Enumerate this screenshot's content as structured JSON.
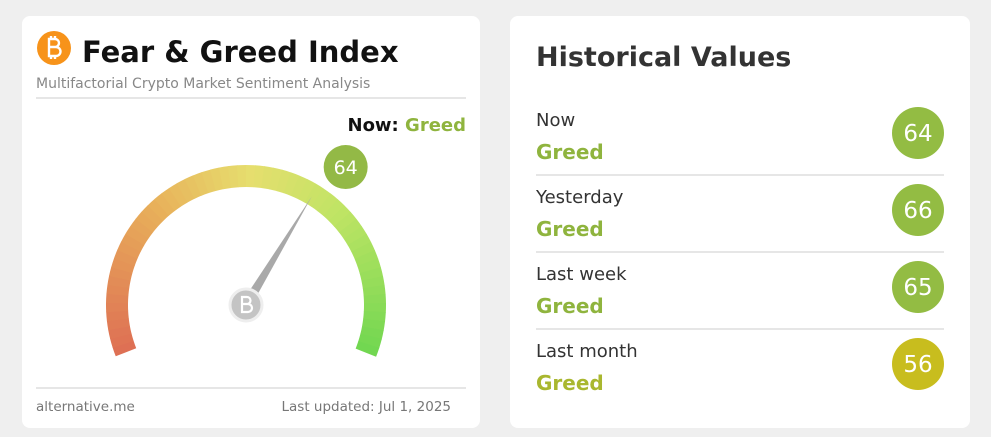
{
  "widget": {
    "title": "Fear & Greed Index",
    "subtitle": "Multifactorial Crypto Market Sentiment Analysis",
    "now_label": "Now:",
    "now_status": "Greed",
    "status_color": "#8fb43e",
    "gauge": {
      "value": 64,
      "range": [
        0,
        100
      ],
      "color": "#93b946"
    },
    "source": "alternative.me",
    "updated": "Last updated: Jul 1, 2025"
  },
  "history": {
    "title": "Historical Values",
    "rows": [
      {
        "label": "Now",
        "status": "Greed",
        "value": 64,
        "color": "#93bc43",
        "status_color": "#8fb43e"
      },
      {
        "label": "Yesterday",
        "status": "Greed",
        "value": 66,
        "color": "#93bc43",
        "status_color": "#8fb43e"
      },
      {
        "label": "Last week",
        "status": "Greed",
        "value": 65,
        "color": "#93bc43",
        "status_color": "#8fb43e"
      },
      {
        "label": "Last month",
        "status": "Greed",
        "value": 56,
        "color": "#c8bd1e",
        "status_color": "#a9b72f"
      }
    ]
  }
}
